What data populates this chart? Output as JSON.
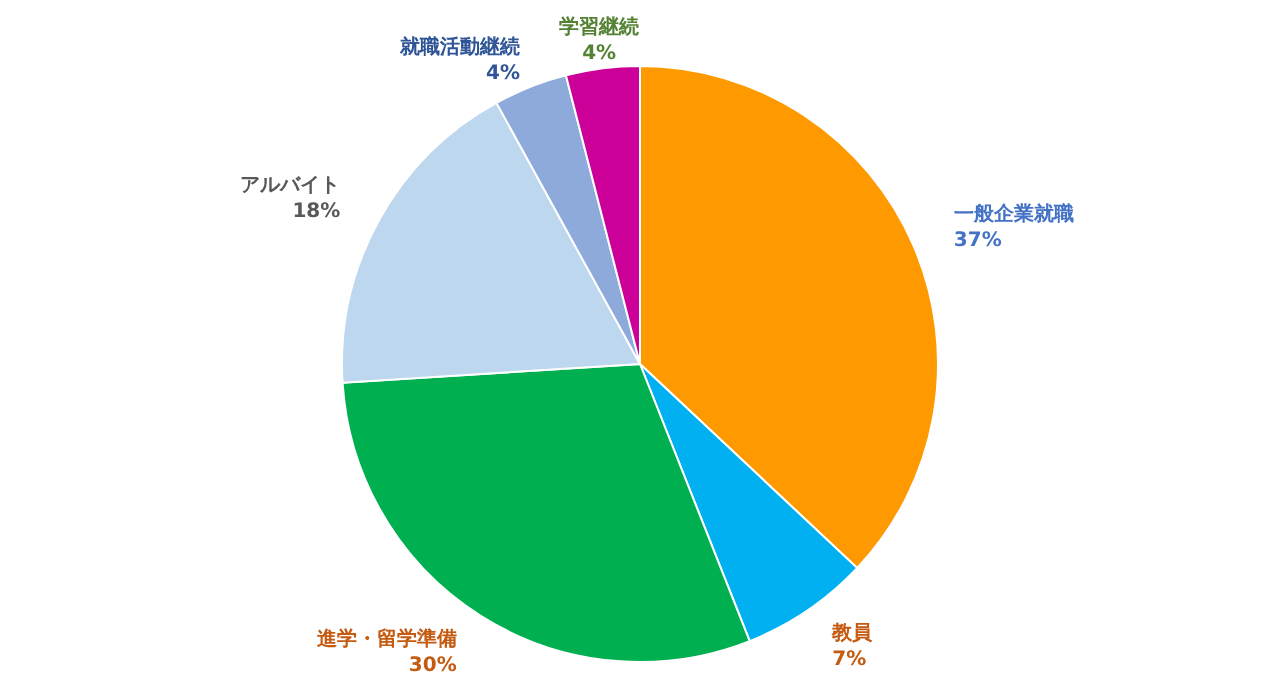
{
  "chart_data": {
    "type": "pie",
    "categories": [
      "一般企業就職",
      "教員",
      "進学・留学準備",
      "アルバイト",
      "就職活動継続",
      "学習継続"
    ],
    "values": [
      37,
      7,
      30,
      18,
      4,
      4
    ],
    "colors": [
      "#ff9900",
      "#00b0f0",
      "#00b050",
      "#bdd7ee",
      "#8eaadb",
      "#cc0099"
    ],
    "value_labels": [
      "37%",
      "7%",
      "30%",
      "18%",
      "4%",
      "4%"
    ]
  }
}
